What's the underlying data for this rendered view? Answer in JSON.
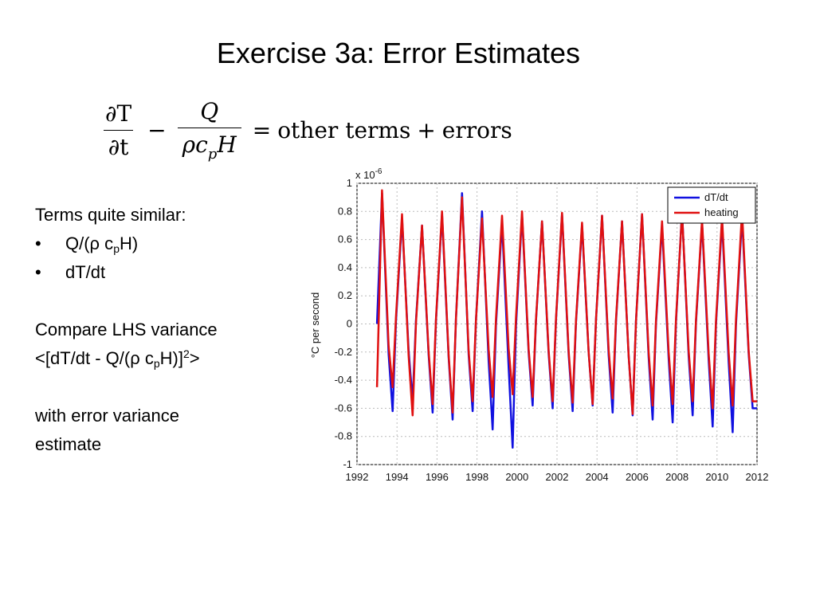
{
  "slide": {
    "title": "Exercise 3a: Error Estimates"
  },
  "equation": {
    "lhs_num": "∂T",
    "lhs_den": "∂t",
    "minus": "−",
    "frac2_num": "Q",
    "frac2_den_rho": "ρc",
    "frac2_den_sub": "p",
    "frac2_den_H": "H",
    "equals": "=",
    "rhs_other": "other terms",
    "plus": "+",
    "rhs_errors": "errors"
  },
  "body": {
    "line1": "Terms quite similar:",
    "bullet_char": "•",
    "bullet1_pre": "Q/(ρ c",
    "bullet1_sub": "p",
    "bullet1_post": "H)",
    "bullet2": "dT/dt",
    "line3": "Compare LHS variance",
    "line4_pre": "<[dT/dt - Q/(ρ c",
    "line4_sub": "p",
    "line4_mid": "H)]",
    "line4_sup": "2",
    "line4_post": ">",
    "line5": "with error variance",
    "line6": "estimate"
  },
  "chart_data": {
    "type": "line",
    "ylabel": "°C per second",
    "y_multiplier_label": "x 10",
    "y_multiplier_exp": "-6",
    "xlim": [
      1992,
      2012
    ],
    "ylim": [
      -1,
      1
    ],
    "xticks": [
      "1992",
      "1994",
      "1996",
      "1998",
      "2000",
      "2002",
      "2004",
      "2006",
      "2008",
      "2010",
      "2012"
    ],
    "yticks": [
      "1",
      "0.8",
      "0.6",
      "0.4",
      "0.2",
      "0",
      "-0.2",
      "-0.4",
      "-0.6",
      "-0.8",
      "-1"
    ],
    "grid": true,
    "legend_position": "top-right",
    "series": [
      {
        "name": "dT/dt",
        "color": "#1010e0",
        "peaks": [
          0.93,
          0.75,
          0.7,
          0.78,
          0.93,
          0.8,
          0.72,
          0.78,
          0.73,
          0.78,
          0.7,
          0.77,
          0.73,
          0.78,
          0.7,
          0.8,
          0.72,
          0.73,
          0.76
        ],
        "troughs": [
          -0.62,
          -0.55,
          -0.63,
          -0.68,
          -0.62,
          -0.75,
          -0.88,
          -0.58,
          -0.6,
          -0.62,
          -0.58,
          -0.63,
          -0.65,
          -0.68,
          -0.7,
          -0.65,
          -0.73,
          -0.77,
          -0.6
        ],
        "start": 0.0,
        "end": -0.6
      },
      {
        "name": "heating",
        "color": "#e01010",
        "peaks": [
          0.95,
          0.78,
          0.7,
          0.8,
          0.9,
          0.75,
          0.77,
          0.8,
          0.73,
          0.79,
          0.72,
          0.77,
          0.73,
          0.78,
          0.73,
          0.79,
          0.74,
          0.76,
          0.8
        ],
        "troughs": [
          -0.45,
          -0.65,
          -0.57,
          -0.63,
          -0.55,
          -0.52,
          -0.5,
          -0.52,
          -0.55,
          -0.56,
          -0.57,
          -0.53,
          -0.64,
          -0.58,
          -0.57,
          -0.55,
          -0.6,
          -0.58,
          -0.55
        ],
        "start": -0.45,
        "end": -0.55
      }
    ]
  }
}
